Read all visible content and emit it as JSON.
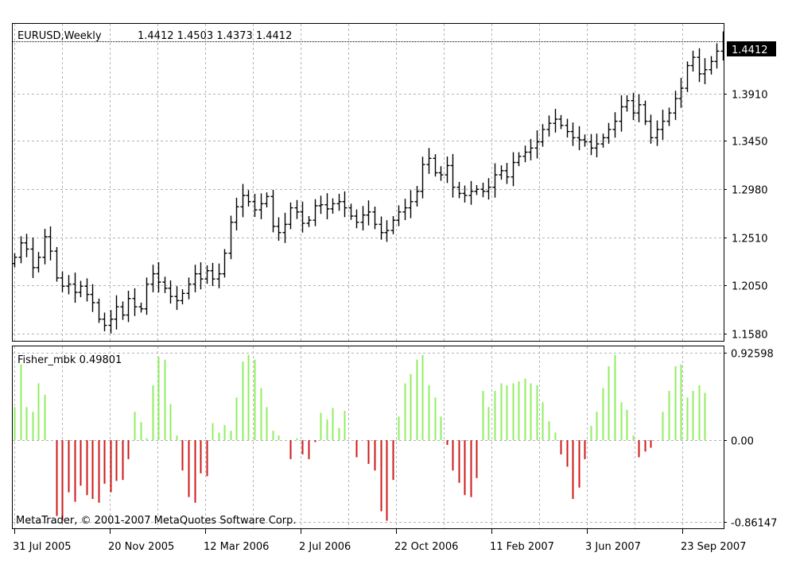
{
  "chart_data": [
    {
      "type": "ohlc",
      "title": "EURUSD,Weekly",
      "quote": "1.4412 1.4503 1.4373 1.4412",
      "last_price_label": "1.4412",
      "last_price": 1.4412,
      "ylim": [
        1.151,
        1.4585
      ],
      "y_ticks": [
        "1.3910",
        "1.3450",
        "1.2980",
        "1.2510",
        "1.2050",
        "1.1580"
      ],
      "grid": true,
      "bar_color": "#000000",
      "closes": [
        1.232,
        1.246,
        1.24,
        1.222,
        1.232,
        1.252,
        1.238,
        1.212,
        1.204,
        1.206,
        1.198,
        1.204,
        1.196,
        1.188,
        1.172,
        1.166,
        1.172,
        1.184,
        1.176,
        1.192,
        1.184,
        1.182,
        1.206,
        1.216,
        1.208,
        1.202,
        1.194,
        1.19,
        1.197,
        1.206,
        1.216,
        1.211,
        1.219,
        1.211,
        1.216,
        1.236,
        1.266,
        1.281,
        1.292,
        1.286,
        1.278,
        1.284,
        1.291,
        1.262,
        1.256,
        1.264,
        1.28,
        1.276,
        1.265,
        1.268,
        1.282,
        1.283,
        1.279,
        1.284,
        1.286,
        1.28,
        1.272,
        1.266,
        1.273,
        1.276,
        1.264,
        1.256,
        1.258,
        1.268,
        1.276,
        1.28,
        1.286,
        1.296,
        1.322,
        1.328,
        1.314,
        1.312,
        1.321,
        1.3,
        1.294,
        1.292,
        1.296,
        1.298,
        1.296,
        1.3,
        1.312,
        1.316,
        1.31,
        1.324,
        1.33,
        1.334,
        1.338,
        1.344,
        1.356,
        1.362,
        1.366,
        1.36,
        1.354,
        1.348,
        1.346,
        1.344,
        1.338,
        1.342,
        1.348,
        1.356,
        1.364,
        1.378,
        1.384,
        1.372,
        1.38,
        1.364,
        1.348,
        1.356,
        1.364,
        1.372,
        1.386,
        1.396,
        1.418,
        1.426,
        1.41,
        1.414,
        1.422,
        1.432,
        1.4412
      ]
    },
    {
      "type": "histogram",
      "indicator_label": "Fisher_mbk 0.49801",
      "ylim": [
        -0.93,
        0.99
      ],
      "y_ticks": [
        "0.92598",
        "0.00",
        "-0.86147"
      ],
      "positive_color": "#90EE60",
      "negative_color": "#CC1A1A",
      "values": [
        0.35,
        0.8,
        0.35,
        0.3,
        0.6,
        0.48,
        0,
        -0.8,
        -0.85,
        -0.55,
        -0.65,
        -0.48,
        -0.58,
        -0.62,
        -0.66,
        -0.46,
        -0.55,
        -0.43,
        -0.42,
        -0.2,
        0.3,
        0.19,
        0.02,
        0.58,
        0.88,
        0.85,
        0.38,
        0.05,
        -0.32,
        -0.6,
        -0.66,
        -0.35,
        -0.38,
        0.18,
        0.08,
        0.16,
        0.1,
        0.45,
        0.83,
        0.9,
        0.85,
        0.55,
        0.35,
        0.1,
        0.05,
        0,
        -0.2,
        0.02,
        -0.15,
        -0.2,
        -0.02,
        0.29,
        0.22,
        0.34,
        0.13,
        0.31,
        0,
        -0.18,
        0,
        -0.25,
        -0.32,
        -0.75,
        -0.85,
        -0.42,
        0.25,
        0.6,
        0.7,
        0.85,
        0.9,
        0.58,
        0.45,
        0.25,
        -0.05,
        -0.32,
        -0.45,
        -0.58,
        -0.6,
        -0.4,
        0.52,
        0.35,
        0.52,
        0.6,
        0.58,
        0.6,
        0.62,
        0.65,
        0.6,
        0.58,
        0.4,
        0.2,
        0.08,
        -0.15,
        -0.28,
        -0.62,
        -0.5,
        -0.2,
        0.15,
        0.3,
        0.55,
        0.78,
        0.9,
        0.4,
        0.32,
        0.05,
        -0.18,
        -0.12,
        -0.08,
        0,
        0.3,
        0.52,
        0.78,
        0.8,
        0.45,
        0.52,
        0.58,
        0.5
      ]
    }
  ],
  "x_labels": [
    "31 Jul 2005",
    "20 Nov 2005",
    "12 Mar 2006",
    "2 Jul 2006",
    "22 Oct 2006",
    "11 Feb 2007",
    "3 Jun 2007",
    "23 Sep 2007"
  ],
  "copyright": "MetaTrader, © 2001-2007 MetaQuotes Software Corp."
}
